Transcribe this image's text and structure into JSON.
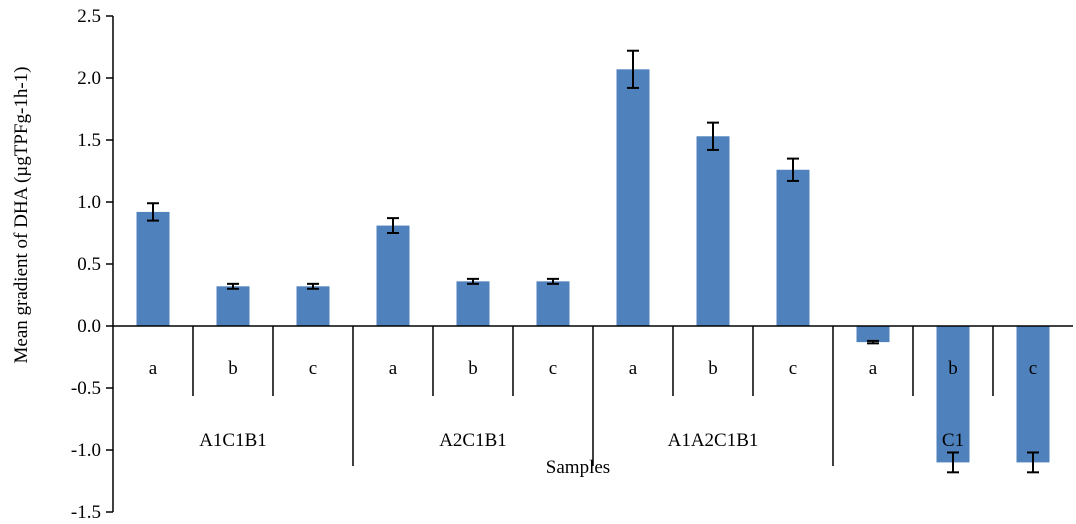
{
  "chart_data": {
    "type": "bar",
    "ylabel": "Mean gradient of DHA (µgTPFg-1h-1)",
    "xlabel": "Samples",
    "ylim": [
      -1.5,
      2.5
    ],
    "yticks": [
      "2.5",
      "2.0",
      "1.5",
      "1.0",
      "0.5",
      "0.0",
      "-0.5",
      "-1.0",
      "-1.5"
    ],
    "ytick_values": [
      2.5,
      2.0,
      1.5,
      1.0,
      0.5,
      0.0,
      -0.5,
      -1.0,
      -1.5
    ],
    "groups": [
      "A1C1B1",
      "A2C1B1",
      "A1A2C1B1",
      "C1"
    ],
    "subcategories": [
      "a",
      "b",
      "c"
    ],
    "values": [
      0.92,
      0.32,
      0.32,
      0.81,
      0.36,
      0.36,
      2.07,
      1.53,
      1.26,
      -0.13,
      -1.1,
      -1.1
    ],
    "errors": [
      0.07,
      0.02,
      0.02,
      0.06,
      0.02,
      0.02,
      0.15,
      0.11,
      0.09,
      0.01,
      0.08,
      0.08
    ],
    "bar_color": "#4f81bd",
    "grid": false
  }
}
